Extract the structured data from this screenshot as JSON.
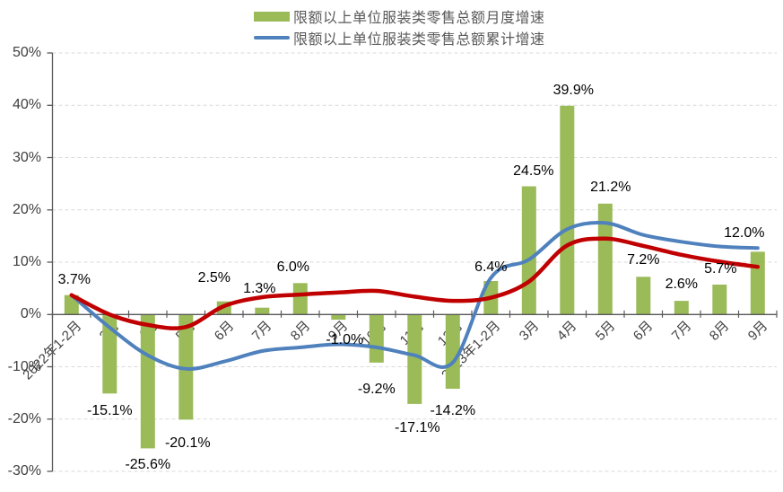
{
  "legend": {
    "items": [
      {
        "label": "限额以上单位服装类零售总额月度增速",
        "marker": "bar-swatch",
        "color": "#9BBB59"
      },
      {
        "label": "限额以上单位服装类零售总额累计增速",
        "marker": "line-swatch",
        "color": "#4F81BD"
      }
    ],
    "position": "top-center"
  },
  "y_axis": {
    "tick_labels": [
      "50%",
      "40%",
      "30%",
      "20%",
      "10%",
      "0%",
      "-10%",
      "-20%",
      "-30%"
    ],
    "tick_values": [
      50,
      40,
      30,
      20,
      10,
      0,
      -10,
      -20,
      -30
    ],
    "min": -30,
    "max": 50,
    "step": 10
  },
  "chart_data": {
    "type": "bar",
    "subtype": "bar-with-smooth-lines",
    "categories": [
      "2022年1-2月",
      "3月",
      "4月",
      "5月",
      "6月",
      "7月",
      "8月",
      "9月",
      "10月",
      "11月",
      "12月",
      "2023年1-2月",
      "3月",
      "4月",
      "5月",
      "6月",
      "7月",
      "8月",
      "9月"
    ],
    "series": [
      {
        "name": "限额以上单位服装类零售总额月度增速",
        "type": "bar",
        "color": "#9BBB59",
        "values": [
          3.7,
          -15.1,
          -25.6,
          -20.1,
          2.5,
          1.3,
          6.0,
          -1.0,
          -9.2,
          -17.1,
          -14.2,
          6.4,
          24.5,
          39.9,
          21.2,
          7.2,
          2.6,
          5.7,
          12.0
        ],
        "data_labels": [
          "3.7%",
          "-15.1%",
          "-25.6%",
          "-20.1%",
          "2.5%",
          "1.3%",
          "6.0%",
          "-1.0%",
          "-9.2%",
          "-17.1%",
          "-14.2%",
          "6.4%",
          "24.5%",
          "39.9%",
          "21.2%",
          "7.2%",
          "2.6%",
          "5.7%",
          "12.0%"
        ]
      },
      {
        "name": "限额以上单位服装类零售总额累计增速",
        "type": "line",
        "color": "#4F81BD",
        "values": [
          3.7,
          -2.5,
          -7.8,
          -10.4,
          -9.0,
          -7.0,
          -6.3,
          -5.7,
          -6.3,
          -7.8,
          -9.2,
          7.0,
          10.5,
          16.3,
          17.5,
          15.2,
          13.9,
          13.0,
          12.7
        ]
      },
      {
        "name": "unlabeled-red-trend-line",
        "type": "line",
        "color": "#C00000",
        "values": [
          3.7,
          0.0,
          -2.0,
          -2.4,
          1.6,
          3.3,
          3.8,
          4.2,
          4.5,
          3.4,
          2.6,
          3.2,
          6.3,
          13.2,
          14.5,
          13.1,
          11.4,
          10.1,
          9.1
        ]
      }
    ],
    "ylim": [
      -30,
      50
    ],
    "xlabel": "",
    "ylabel": "",
    "title": "",
    "grid": "dashed-horizontal",
    "grid_color": "#D9D9D9",
    "axis_color": "#595959",
    "legend_position": "top-center"
  }
}
